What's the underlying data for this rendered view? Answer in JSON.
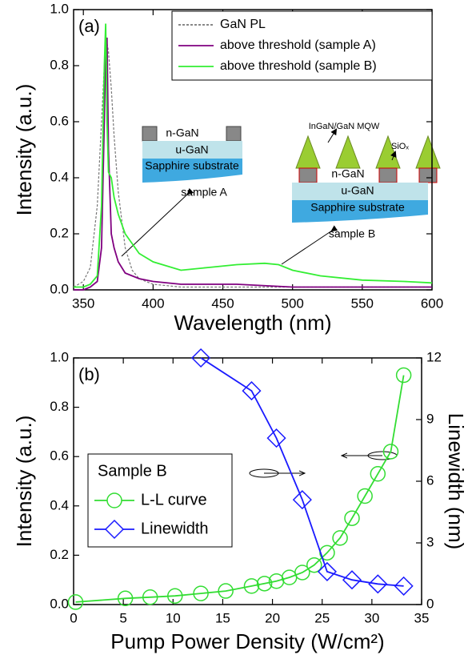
{
  "chart_data": [
    {
      "type": "line",
      "panel_label": "(a)",
      "x_label": "Wavelength (nm)",
      "y_label": "Intensity (a.u.)",
      "xlim": [
        343,
        600
      ],
      "xticks": [
        350,
        400,
        450,
        500,
        550,
        600
      ],
      "ylim": [
        0,
        1.0
      ],
      "yticks": [
        {
          "value": 0,
          "label": "0.0"
        },
        0.2,
        0.4,
        0.6,
        0.8,
        {
          "value": 1.0,
          "label": "1.0"
        }
      ],
      "legend": "upper right",
      "series": [
        {
          "name": "GaN PL",
          "color": "#777777",
          "linestyle": "dashed",
          "x": [
            343,
            350,
            355,
            360,
            363,
            365,
            366,
            367,
            368,
            370,
            372,
            375,
            380,
            385,
            390,
            400,
            420,
            450,
            500,
            550,
            600
          ],
          "values": [
            0.01,
            0.03,
            0.08,
            0.3,
            0.6,
            0.8,
            0.86,
            0.88,
            0.85,
            0.72,
            0.55,
            0.35,
            0.15,
            0.07,
            0.04,
            0.02,
            0.01,
            0.01,
            0.01,
            0.01,
            0.01
          ]
        },
        {
          "name": "above threshold (sample A)",
          "color": "#800080",
          "linestyle": "solid",
          "x": [
            343,
            350,
            355,
            360,
            363,
            365,
            366,
            367,
            368,
            370,
            372,
            375,
            380,
            385,
            390,
            400,
            420,
            440,
            460,
            500,
            550,
            600
          ],
          "values": [
            0,
            0,
            0.01,
            0.03,
            0.15,
            0.6,
            0.85,
            0.9,
            0.5,
            0.2,
            0.15,
            0.1,
            0.06,
            0.05,
            0.04,
            0.03,
            0.02,
            0.02,
            0.02,
            0.01,
            0.01,
            0.01
          ]
        },
        {
          "name": "above threshold (sample B)",
          "color": "#33ee33",
          "linestyle": "solid",
          "x": [
            343,
            350,
            355,
            360,
            363,
            365,
            366,
            367,
            368,
            370,
            372,
            375,
            380,
            390,
            400,
            420,
            440,
            460,
            480,
            490,
            500,
            520,
            550,
            580,
            600
          ],
          "values": [
            0.01,
            0.01,
            0.02,
            0.05,
            0.3,
            0.8,
            0.95,
            0.6,
            0.42,
            0.4,
            0.33,
            0.27,
            0.2,
            0.13,
            0.1,
            0.07,
            0.08,
            0.09,
            0.095,
            0.09,
            0.07,
            0.05,
            0.035,
            0.03,
            0.025
          ]
        }
      ],
      "annotations": [
        "n-GaN",
        "u-GaN",
        "Sapphire substrate",
        "sample A",
        "InGaN/GaN MQW",
        "SiOₓ",
        "n-GaN",
        "u-GaN",
        "Sapphire substrate",
        "sample B"
      ]
    },
    {
      "type": "line",
      "panel_label": "(b)",
      "x_label": "Pump Power Density (W/cm²)",
      "y_label": "Intensity (a.u.)",
      "y2_label": "Linewidth (nm)",
      "xlim": [
        0,
        35
      ],
      "xticks": [
        0,
        5,
        10,
        15,
        20,
        25,
        30,
        35
      ],
      "ylim": [
        0,
        1.0
      ],
      "yticks": [
        {
          "value": 0,
          "label": "0.0"
        },
        0.2,
        0.4,
        0.6,
        0.8,
        {
          "value": 1.0,
          "label": "1.0"
        }
      ],
      "y2lim": [
        0,
        12
      ],
      "y2ticks": [
        0,
        3,
        6,
        9,
        12
      ],
      "legend": "center left",
      "legend_title": "Sample B",
      "series": [
        {
          "name": "L-L curve",
          "color": "#33dd33",
          "marker": "circle",
          "x": [
            0.2,
            5.2,
            7.7,
            10.2,
            12.8,
            15.3,
            17.9,
            19.2,
            20.4,
            21.7,
            23.0,
            24.2,
            25.5,
            26.8,
            28.0,
            29.3,
            30.6,
            31.9,
            33.2
          ],
          "values": [
            0.01,
            0.025,
            0.03,
            0.035,
            0.045,
            0.055,
            0.075,
            0.085,
            0.095,
            0.11,
            0.13,
            0.16,
            0.21,
            0.27,
            0.35,
            0.44,
            0.53,
            0.62,
            0.93
          ]
        },
        {
          "name": "Linewidth",
          "color": "#1a1aff",
          "marker": "diamond",
          "axis": "y2",
          "x": [
            12.8,
            17.9,
            20.4,
            23.0,
            25.5,
            28.0,
            30.6,
            33.2
          ],
          "values": [
            12,
            10.4,
            8.1,
            5.1,
            1.6,
            1.2,
            1.0,
            0.9
          ]
        }
      ]
    }
  ]
}
